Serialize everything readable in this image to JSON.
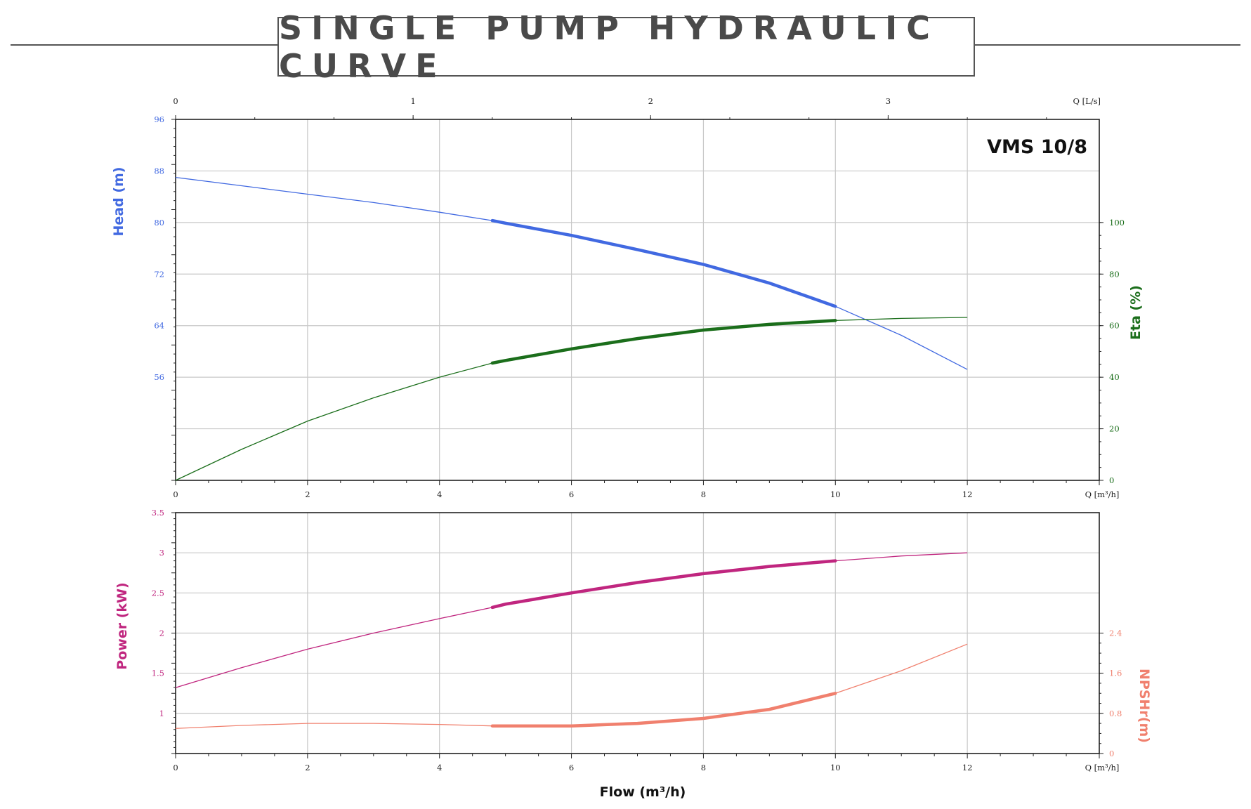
{
  "header": {
    "title": "SINGLE PUMP HYDRAULIC CURVE"
  },
  "chart_data": [
    {
      "type": "line",
      "name": "Head and Efficiency",
      "model_label": "VMS 10/8",
      "x_axis": {
        "label": "Q [m³/h]",
        "range": [
          0,
          14
        ],
        "ticks": [
          "0",
          "2",
          "4",
          "6",
          "8",
          "10",
          "12"
        ]
      },
      "x2_axis": {
        "label": "Q [L/s]",
        "range": [
          0,
          3.889
        ],
        "ticks": [
          "0",
          "1",
          "2",
          "3"
        ]
      },
      "y_axis": {
        "label": "Head (m)",
        "range": [
          40,
          96
        ],
        "ticks": [
          "56",
          "64",
          "72",
          "80",
          "88",
          "96"
        ],
        "color": "#4169e1"
      },
      "y2_axis": {
        "label": "Eta (%)",
        "range": [
          0,
          140
        ],
        "ticks": [
          "0",
          "20",
          "40",
          "60",
          "80",
          "100"
        ],
        "color": "#1b6e1b"
      },
      "grid": true,
      "operating_range": [
        4.8,
        10
      ],
      "series": [
        {
          "name": "Head (m)",
          "axis": "y",
          "color": "#4169e1",
          "x": [
            0,
            1,
            2,
            3,
            4,
            4.8,
            5,
            6,
            7,
            8,
            9,
            10,
            11,
            12
          ],
          "y": [
            87.0,
            85.7,
            84.4,
            83.1,
            81.6,
            80.3,
            79.9,
            78.0,
            75.8,
            73.5,
            70.6,
            67.0,
            62.5,
            57.2
          ]
        },
        {
          "name": "Eta (%)",
          "axis": "y2",
          "color": "#1b6e1b",
          "x": [
            0,
            1,
            2,
            3,
            4,
            4.8,
            5,
            6,
            7,
            8,
            9,
            10,
            11,
            12
          ],
          "y": [
            0,
            12,
            23,
            32,
            40,
            45.5,
            46.5,
            51,
            55,
            58.3,
            60.5,
            62,
            62.8,
            63.2
          ]
        }
      ]
    },
    {
      "type": "line",
      "name": "Power and NPSHr",
      "x_axis": {
        "label": "Q [m³/h]",
        "range": [
          0,
          14
        ],
        "ticks": [
          "0",
          "2",
          "4",
          "6",
          "8",
          "10",
          "12"
        ]
      },
      "y_axis": {
        "label": "Power (kW)",
        "range": [
          0.5,
          3.5
        ],
        "ticks": [
          "1",
          "1.5",
          "2",
          "2.5",
          "3",
          "3.5"
        ],
        "color": "#c0267f"
      },
      "y2_axis": {
        "label": "NPSHr(m)",
        "range": [
          0,
          4.8
        ],
        "ticks": [
          "0",
          "0.8",
          "1.6",
          "2.4"
        ],
        "color": "#f0806e"
      },
      "grid": true,
      "operating_range": [
        4.8,
        10
      ],
      "x_title": "Flow (m³/h)",
      "series": [
        {
          "name": "Power (kW)",
          "axis": "y",
          "color": "#c0267f",
          "x": [
            0,
            1,
            2,
            3,
            4,
            4.8,
            5,
            6,
            7,
            8,
            9,
            10,
            11,
            12
          ],
          "y": [
            1.32,
            1.57,
            1.8,
            2.0,
            2.18,
            2.32,
            2.36,
            2.5,
            2.63,
            2.74,
            2.83,
            2.9,
            2.96,
            3.0
          ]
        },
        {
          "name": "NPSHr(m)",
          "axis": "y2",
          "color": "#f0806e",
          "x": [
            0,
            1,
            2,
            3,
            4,
            4.8,
            5,
            6,
            7,
            8,
            9,
            10,
            11,
            12
          ],
          "y": [
            0.5,
            0.56,
            0.6,
            0.6,
            0.58,
            0.55,
            0.55,
            0.55,
            0.6,
            0.7,
            0.88,
            1.2,
            1.65,
            2.18
          ]
        }
      ]
    }
  ]
}
